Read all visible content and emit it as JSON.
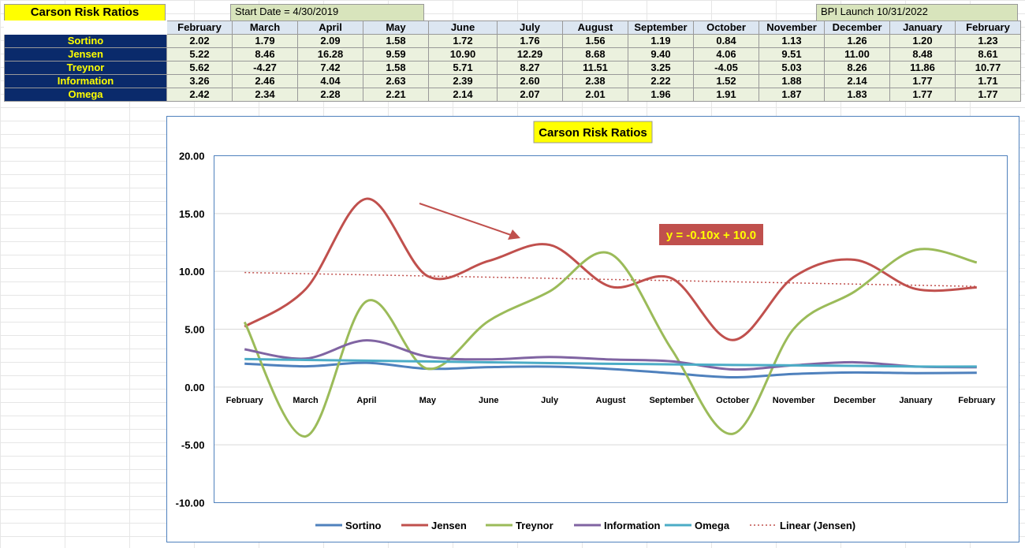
{
  "sheet": {
    "title": "Carson Risk Ratios",
    "start_note": "Start Date = 4/30/2019",
    "launch_note": "BPI Launch 10/31/2022",
    "columns": [
      "February",
      "March",
      "April",
      "May",
      "June",
      "July",
      "August",
      "September",
      "October",
      "November",
      "December",
      "January",
      "February"
    ],
    "rows": [
      {
        "label": "Sortino",
        "values": [
          "2.02",
          "1.79",
          "2.09",
          "1.58",
          "1.72",
          "1.76",
          "1.56",
          "1.19",
          "0.84",
          "1.13",
          "1.26",
          "1.20",
          "1.23"
        ]
      },
      {
        "label": "Jensen",
        "values": [
          "5.22",
          "8.46",
          "16.28",
          "9.59",
          "10.90",
          "12.29",
          "8.68",
          "9.40",
          "4.06",
          "9.51",
          "11.00",
          "8.48",
          "8.61"
        ]
      },
      {
        "label": "Treynor",
        "values": [
          "5.62",
          "-4.27",
          "7.42",
          "1.58",
          "5.71",
          "8.27",
          "11.51",
          "3.25",
          "-4.05",
          "5.03",
          "8.26",
          "11.86",
          "10.77"
        ]
      },
      {
        "label": "Information",
        "values": [
          "3.26",
          "2.46",
          "4.04",
          "2.63",
          "2.39",
          "2.60",
          "2.38",
          "2.22",
          "1.52",
          "1.88",
          "2.14",
          "1.77",
          "1.71"
        ]
      },
      {
        "label": "Omega",
        "values": [
          "2.42",
          "2.34",
          "2.28",
          "2.21",
          "2.14",
          "2.07",
          "2.01",
          "1.96",
          "1.91",
          "1.87",
          "1.83",
          "1.77",
          "1.77"
        ]
      }
    ]
  },
  "chart_data": {
    "type": "line",
    "title": "Carson Risk Ratios",
    "categories": [
      "February",
      "March",
      "April",
      "May",
      "June",
      "July",
      "August",
      "September",
      "October",
      "November",
      "December",
      "January",
      "February"
    ],
    "ylim": [
      -10,
      20
    ],
    "yticks": [
      "20.00",
      "15.00",
      "10.00",
      "5.00",
      "0.00",
      "-5.00",
      "-10.00"
    ],
    "ytick_values": [
      20,
      15,
      10,
      5,
      0,
      -5,
      -10
    ],
    "grid": true,
    "legend_position": "bottom",
    "series": [
      {
        "name": "Sortino",
        "color": "#4f81bd",
        "values": [
          2.02,
          1.79,
          2.09,
          1.58,
          1.72,
          1.76,
          1.56,
          1.19,
          0.84,
          1.13,
          1.26,
          1.2,
          1.23
        ]
      },
      {
        "name": "Jensen",
        "color": "#c0504d",
        "values": [
          5.22,
          8.46,
          16.28,
          9.59,
          10.9,
          12.29,
          8.68,
          9.4,
          4.06,
          9.51,
          11.0,
          8.48,
          8.61
        ]
      },
      {
        "name": "Treynor",
        "color": "#9bbb59",
        "values": [
          5.62,
          -4.27,
          7.42,
          1.58,
          5.71,
          8.27,
          11.51,
          3.25,
          -4.05,
          5.03,
          8.26,
          11.86,
          10.77
        ]
      },
      {
        "name": "Information",
        "color": "#8064a2",
        "values": [
          3.26,
          2.46,
          4.04,
          2.63,
          2.39,
          2.6,
          2.38,
          2.22,
          1.52,
          1.88,
          2.14,
          1.77,
          1.71
        ]
      },
      {
        "name": "Omega",
        "color": "#4bacc6",
        "values": [
          2.42,
          2.34,
          2.28,
          2.21,
          2.14,
          2.07,
          2.01,
          1.96,
          1.91,
          1.87,
          1.83,
          1.77,
          1.77
        ]
      }
    ],
    "trendline": {
      "name": "Linear (Jensen)",
      "color": "#c0504d",
      "slope": -0.1,
      "intercept": 10.0,
      "label": "y = -0.10x + 10.0",
      "label_bg": "#c0504d",
      "label_color": "#ffff00"
    },
    "title_bg": "#ffff00"
  }
}
